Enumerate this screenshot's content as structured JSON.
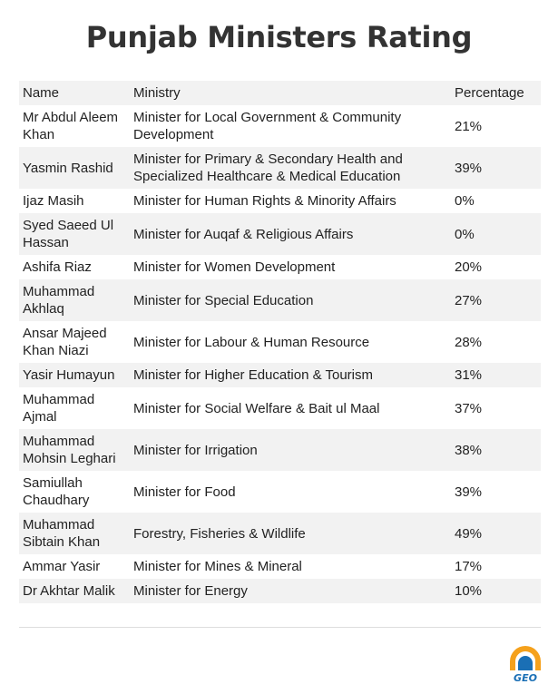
{
  "title": "Punjab Ministers Rating",
  "table": {
    "headers": [
      "Name",
      "Ministry",
      "Percentage"
    ],
    "rows": [
      {
        "name": "Mr Abdul Aleem Khan",
        "ministry": "Minister for Local Government & Community Development",
        "percentage": "21%"
      },
      {
        "name": "Yasmin Rashid",
        "ministry": "Minister for Primary & Secondary Health and Specialized Healthcare & Medical Education",
        "percentage": "39%"
      },
      {
        "name": "Ijaz Masih",
        "ministry": "Minister for Human Rights & Minority Affairs",
        "percentage": "0%"
      },
      {
        "name": "Syed Saeed Ul Hassan",
        "ministry": "Minister for Auqaf & Religious Affairs",
        "percentage": "0%"
      },
      {
        "name": "Ashifa Riaz",
        "ministry": "Minister for Women Development",
        "percentage": "20%"
      },
      {
        "name": "Muhammad Akhlaq",
        "ministry": "Minister for Special Education",
        "percentage": "27%"
      },
      {
        "name": "Ansar Majeed Khan Niazi",
        "ministry": "Minister for Labour & Human Resource",
        "percentage": "28%"
      },
      {
        "name": "Yasir Humayun",
        "ministry": "Minister for Higher Education & Tourism",
        "percentage": "31%"
      },
      {
        "name": "Muhammad Ajmal",
        "ministry": "Minister for Social Welfare & Bait ul Maal",
        "percentage": "37%"
      },
      {
        "name": "Muhammad Mohsin Leghari",
        "ministry": "Minister for Irrigation",
        "percentage": "38%"
      },
      {
        "name": "Samiullah Chaudhary",
        "ministry": "Minister for Food",
        "percentage": "39%"
      },
      {
        "name": "Muhammad Sibtain Khan",
        "ministry": "Forestry, Fisheries & Wildlife",
        "percentage": "49%"
      },
      {
        "name": "Ammar Yasir",
        "ministry": "Minister for Mines & Mineral",
        "percentage": "17%"
      },
      {
        "name": "Dr Akhtar Malik",
        "ministry": "Minister for Energy",
        "percentage": "10%"
      }
    ]
  },
  "logo": {
    "text": "GEO",
    "colors": {
      "orange": "#f5a11c",
      "blue": "#1a6fb5",
      "text": "#1a6fb5"
    }
  }
}
